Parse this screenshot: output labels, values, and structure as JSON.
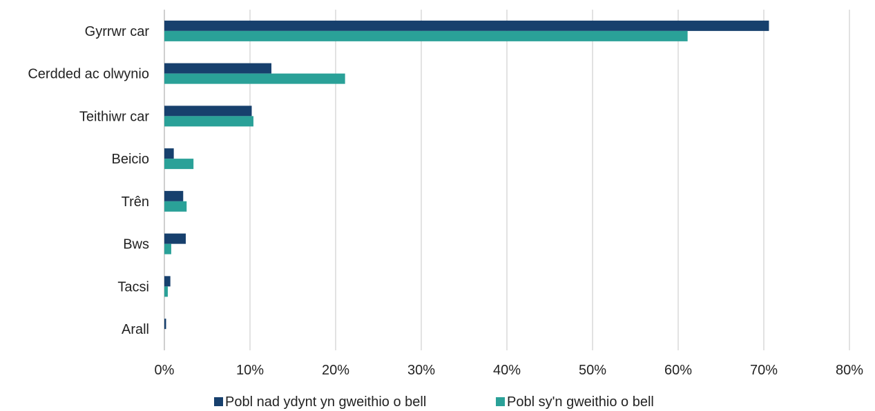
{
  "chart_data": {
    "type": "bar",
    "orientation": "horizontal",
    "categories": [
      "Gyrrwr car",
      "Cerdded ac olwynio",
      "Teithiwr car",
      "Beicio",
      "Trên",
      "Bws",
      "Tacsi",
      "Arall"
    ],
    "series": [
      {
        "name": "Pobl nad ydynt yn gweithio o bell",
        "color": "#17406d",
        "values": [
          70.6,
          12.5,
          10.2,
          1.1,
          2.2,
          2.5,
          0.7,
          0.2
        ]
      },
      {
        "name": "Pobl sy'n gweithio o bell",
        "color": "#2aa198",
        "values": [
          61.1,
          21.1,
          10.4,
          3.4,
          2.6,
          0.8,
          0.4,
          0.0
        ]
      }
    ],
    "xlim": [
      0,
      80
    ],
    "xticks": [
      "0%",
      "10%",
      "20%",
      "30%",
      "40%",
      "50%",
      "60%",
      "70%",
      "80%"
    ],
    "grid": true,
    "legend_position": "bottom"
  }
}
